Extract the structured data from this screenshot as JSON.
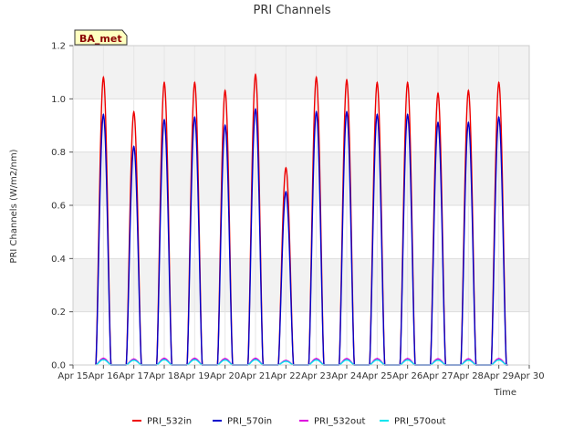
{
  "chart_data": {
    "type": "line",
    "title": "PRI Channels",
    "xlabel": "Time",
    "ylabel": "PRI Channels (W/m2/nm)",
    "annotation": "BA_met",
    "ylim": [
      0.0,
      1.2
    ],
    "yticks": [
      0.0,
      0.2,
      0.4,
      0.6,
      0.8,
      1.0,
      1.2
    ],
    "ytick_labels": [
      "0.0",
      "0.2",
      "0.4",
      "0.6",
      "0.8",
      "1.0",
      "1.2"
    ],
    "xlim": [
      15,
      30
    ],
    "xticks": [
      15,
      16,
      17,
      18,
      19,
      20,
      21,
      22,
      23,
      24,
      25,
      26,
      27,
      28,
      29,
      30
    ],
    "xtick_labels": [
      "Apr 15",
      "Apr 16",
      "Apr 17",
      "Apr 18",
      "Apr 19",
      "Apr 20",
      "Apr 21",
      "Apr 22",
      "Apr 23",
      "Apr 24",
      "Apr 25",
      "Apr 26",
      "Apr 27",
      "Apr 28",
      "Apr 29",
      "Apr 30"
    ],
    "grid": true,
    "legend_position": "bottom",
    "daily_peak_days": [
      16,
      17,
      18,
      19,
      20,
      21,
      22,
      23,
      24,
      25,
      26,
      27,
      28,
      29
    ],
    "series": [
      {
        "name": "PRI_532in",
        "color": "#ee0000",
        "daily_peaks": [
          1.08,
          0.95,
          1.06,
          1.06,
          1.03,
          1.09,
          0.74,
          1.08,
          1.07,
          1.06,
          1.06,
          1.02,
          1.03,
          1.06
        ]
      },
      {
        "name": "PRI_570in",
        "color": "#0000cc",
        "daily_peaks": [
          0.94,
          0.82,
          0.92,
          0.93,
          0.9,
          0.96,
          0.65,
          0.95,
          0.95,
          0.94,
          0.94,
          0.91,
          0.91,
          0.93
        ]
      },
      {
        "name": "PRI_532out",
        "color": "#dd00dd",
        "daily_peaks": [
          0.025,
          0.022,
          0.025,
          0.025,
          0.024,
          0.025,
          0.017,
          0.024,
          0.024,
          0.024,
          0.024,
          0.023,
          0.023,
          0.024
        ]
      },
      {
        "name": "PRI_570out",
        "color": "#00e5ee",
        "daily_peaks": [
          0.02,
          0.018,
          0.02,
          0.02,
          0.019,
          0.02,
          0.014,
          0.019,
          0.019,
          0.019,
          0.019,
          0.018,
          0.018,
          0.019
        ]
      }
    ]
  }
}
